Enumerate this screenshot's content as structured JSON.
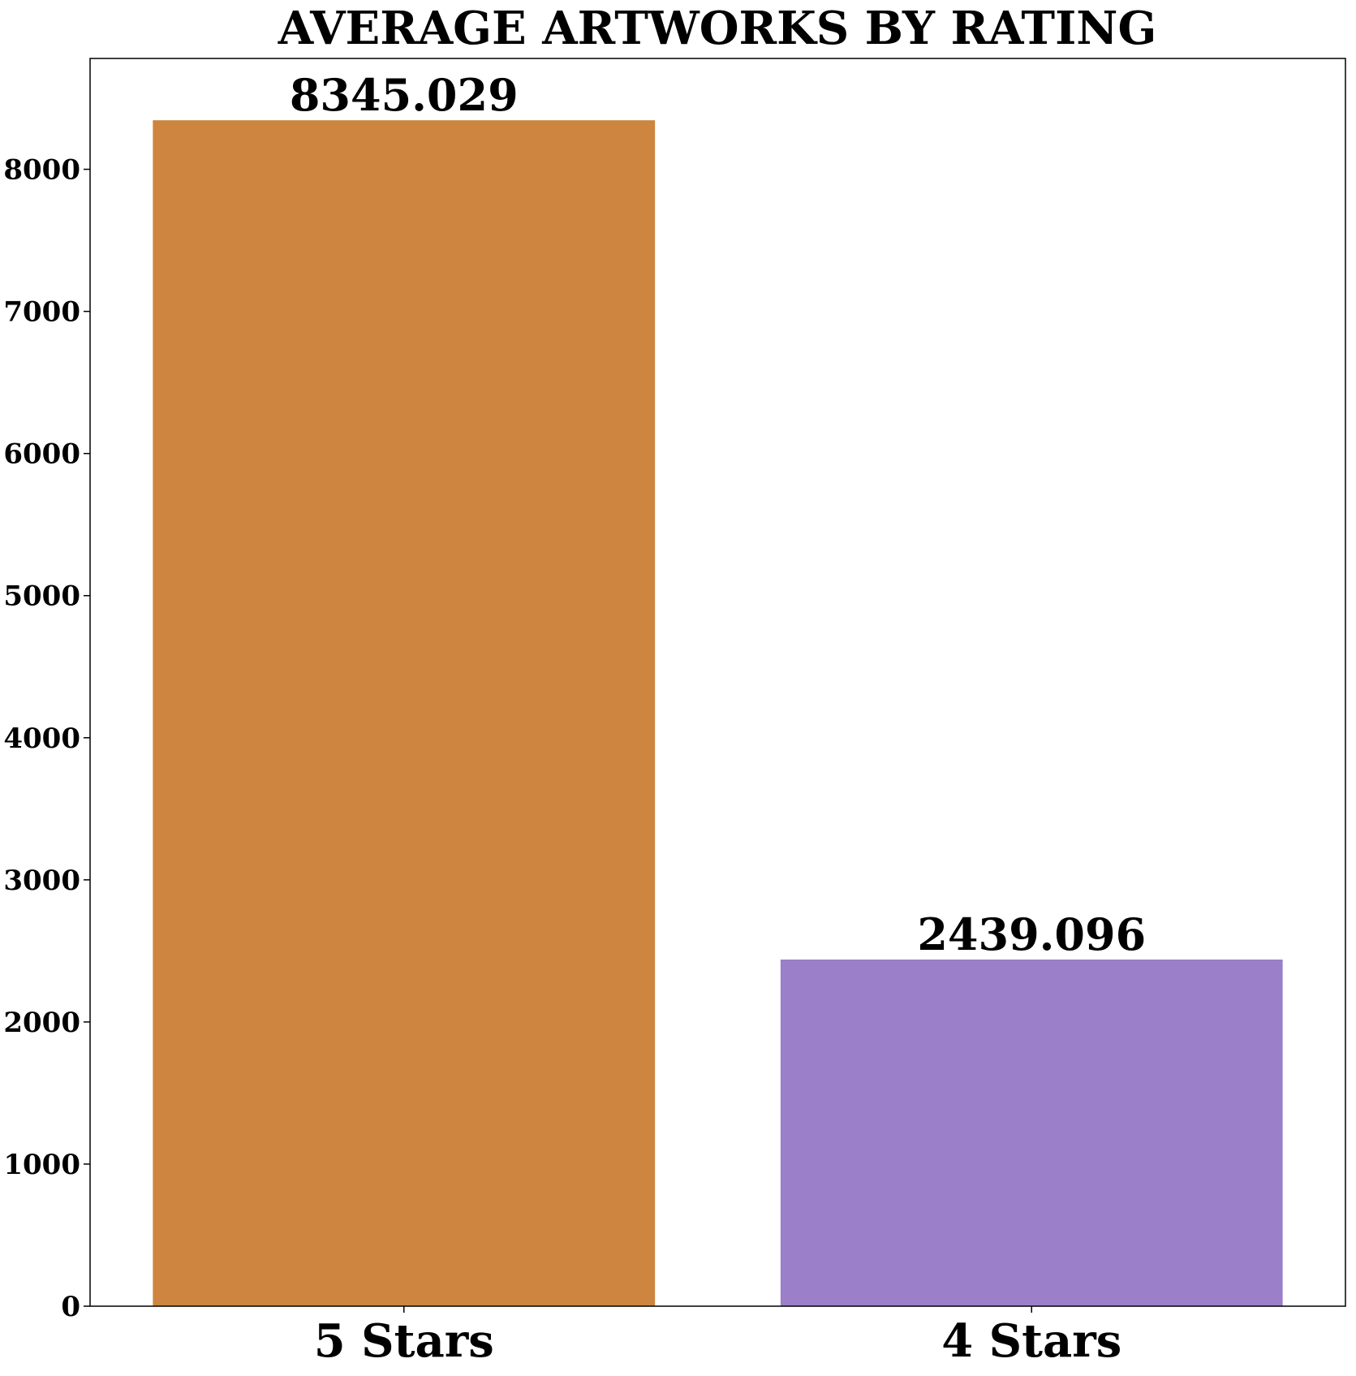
{
  "chart_data": {
    "type": "bar",
    "title": "AVERAGE ARTWORKS BY RATING",
    "xlabel": "",
    "ylabel": "",
    "categories": [
      "5 Stars",
      "4 Stars"
    ],
    "values": [
      8345.029,
      2439.096
    ],
    "data_labels": [
      "8345.029",
      "2439.096"
    ],
    "colors": [
      "#CD853F",
      "#9B7FC8"
    ],
    "ylim": [
      0,
      8780
    ],
    "yticks": [
      0,
      1000,
      2000,
      3000,
      4000,
      5000,
      6000,
      7000,
      8000
    ],
    "grid": false,
    "legend": "none"
  }
}
